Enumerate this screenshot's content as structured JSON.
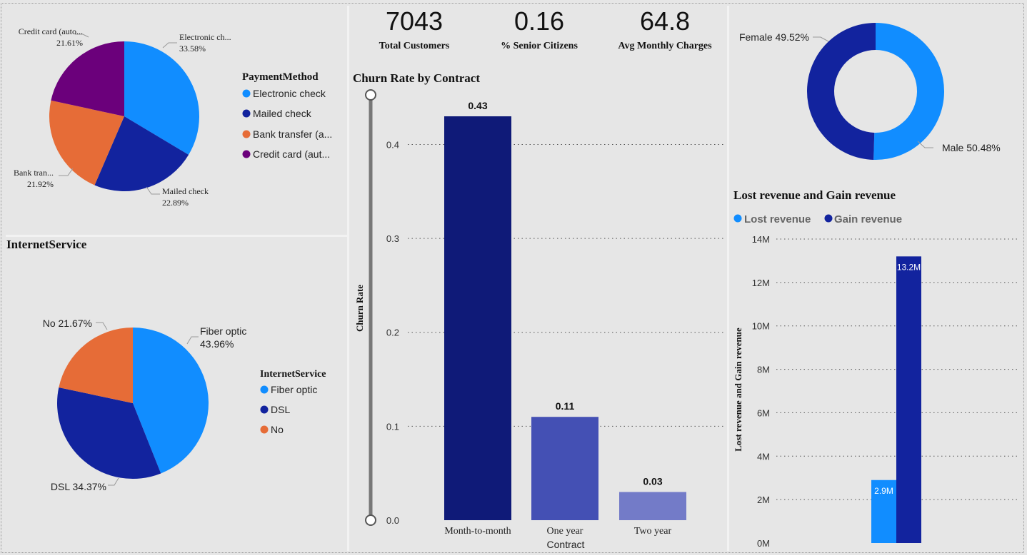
{
  "colors": {
    "background": "#e6e6e6",
    "light_blue": "#118dff",
    "navy": "#12239e",
    "orange": "#e66c37",
    "purple": "#6b007b",
    "bar_dark": "#0f1a78",
    "bar_mid": "#4450b4",
    "bar_light": "#737bc8"
  },
  "kpis": [
    {
      "value": "7043",
      "label": "Total Customers"
    },
    {
      "value": "0.16",
      "label": "% Senior Citizens"
    },
    {
      "value": "64.8",
      "label": "Avg Monthly Charges"
    }
  ],
  "payment": {
    "legend_title": "PaymentMethod",
    "legend_items": [
      "Electronic check",
      "Mailed check",
      "Bank transfer (a...",
      "Credit card (aut..."
    ],
    "slice_labels": [
      {
        "name": "Electronic ch...",
        "pct": "33.58%"
      },
      {
        "name": "Mailed check",
        "pct": "22.89%"
      },
      {
        "name": "Bank tran...",
        "pct": "21.92%"
      },
      {
        "name": "Credit card (auto...",
        "pct": "21.61%"
      }
    ]
  },
  "internet": {
    "title": "InternetService",
    "legend_title": "InternetService",
    "legend_items": [
      "Fiber optic",
      "DSL",
      "No"
    ],
    "slice_labels": [
      {
        "name": "Fiber optic",
        "pct": "43.96%"
      },
      {
        "text": "DSL 34.37%"
      },
      {
        "text": "No 21.67%"
      }
    ]
  },
  "gender": {
    "labels": [
      "Female 49.52%",
      "Male 50.48%"
    ]
  },
  "churn": {
    "title": "Churn Rate by Contract",
    "ylabel": "Churn Rate",
    "xlabel": "Contract",
    "categories": [
      "Month-to-month",
      "One year",
      "Two year"
    ],
    "value_labels": [
      "0.43",
      "0.11",
      "0.03"
    ],
    "ticks": [
      "0.0",
      "0.1",
      "0.2",
      "0.3",
      "0.4"
    ]
  },
  "revenue": {
    "title": "Lost revenue and Gain revenue",
    "legend": [
      "Lost revenue",
      "Gain revenue"
    ],
    "ylabel": "Lost revenue and Gain revenue",
    "ticks": [
      "0M",
      "2M",
      "4M",
      "6M",
      "8M",
      "10M",
      "12M",
      "14M"
    ],
    "value_labels": [
      "2.9M",
      "13.2M"
    ]
  },
  "chart_data": [
    {
      "type": "pie",
      "legend_title": "PaymentMethod",
      "categories": [
        "Electronic check",
        "Mailed check",
        "Bank transfer (automatic)",
        "Credit card (automatic)"
      ],
      "values": [
        33.58,
        22.89,
        21.92,
        21.61
      ],
      "legend_position": "right"
    },
    {
      "type": "pie",
      "title": "InternetService",
      "categories": [
        "Fiber optic",
        "DSL",
        "No"
      ],
      "values": [
        43.96,
        34.37,
        21.67
      ],
      "legend_position": "right"
    },
    {
      "type": "pie",
      "donut": true,
      "categories": [
        "Male",
        "Female"
      ],
      "values": [
        50.48,
        49.52
      ]
    },
    {
      "type": "bar",
      "title": "Churn Rate by Contract",
      "categories": [
        "Month-to-month",
        "One year",
        "Two year"
      ],
      "values": [
        0.43,
        0.11,
        0.03
      ],
      "xlabel": "Contract",
      "ylabel": "Churn Rate",
      "ylim": [
        0,
        0.43
      ],
      "grid": true
    },
    {
      "type": "bar",
      "title": "Lost revenue and Gain revenue",
      "series": [
        {
          "name": "Lost revenue",
          "values": [
            2.9
          ]
        },
        {
          "name": "Gain revenue",
          "values": [
            13.2
          ]
        }
      ],
      "ylabel": "Lost revenue and Gain revenue",
      "ylim": [
        0,
        14
      ],
      "unit": "M",
      "grid": true,
      "legend_position": "top-left"
    }
  ]
}
